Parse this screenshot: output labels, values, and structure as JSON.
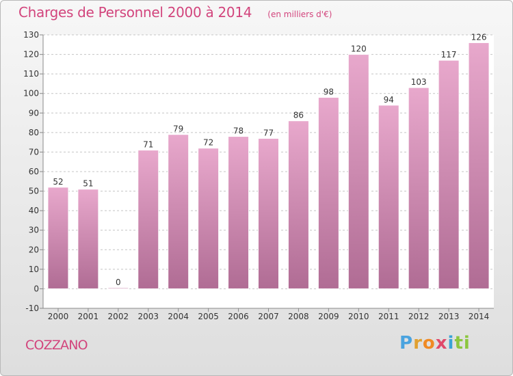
{
  "header": {
    "title": "Charges de Personnel 2000 à 2014",
    "subtitle": "(en milliers d'€)"
  },
  "footer": {
    "place": "COZZANO",
    "brand_letters": [
      {
        "ch": "P",
        "color": "#4aa3df"
      },
      {
        "ch": "r",
        "color": "#e0a030"
      },
      {
        "ch": "o",
        "color": "#f08a24"
      },
      {
        "ch": "x",
        "color": "#e04a6a"
      },
      {
        "ch": "i",
        "color": "#3aa3d6"
      },
      {
        "ch": "t",
        "color": "#8cc63f"
      },
      {
        "ch": "i",
        "color": "#8cc63f"
      }
    ]
  },
  "chart_data": {
    "type": "bar",
    "title": "Charges de Personnel 2000 à 2014",
    "subtitle": "(en milliers d'€)",
    "categories": [
      "2000",
      "2001",
      "2002",
      "2003",
      "2004",
      "2005",
      "2006",
      "2007",
      "2008",
      "2009",
      "2010",
      "2011",
      "2012",
      "2013",
      "2014"
    ],
    "values": [
      52,
      51,
      0,
      71,
      79,
      72,
      78,
      77,
      86,
      98,
      120,
      94,
      103,
      117,
      126
    ],
    "ylim": [
      -10,
      130
    ],
    "yticks": [
      -10,
      0,
      10,
      20,
      30,
      40,
      50,
      60,
      70,
      80,
      90,
      100,
      110,
      120,
      130
    ],
    "grid": "horizontal-dashed",
    "bar_color_top": "#e8a8cc",
    "bar_color_bottom": "#b06c94",
    "plot_background": "#ffffff"
  }
}
